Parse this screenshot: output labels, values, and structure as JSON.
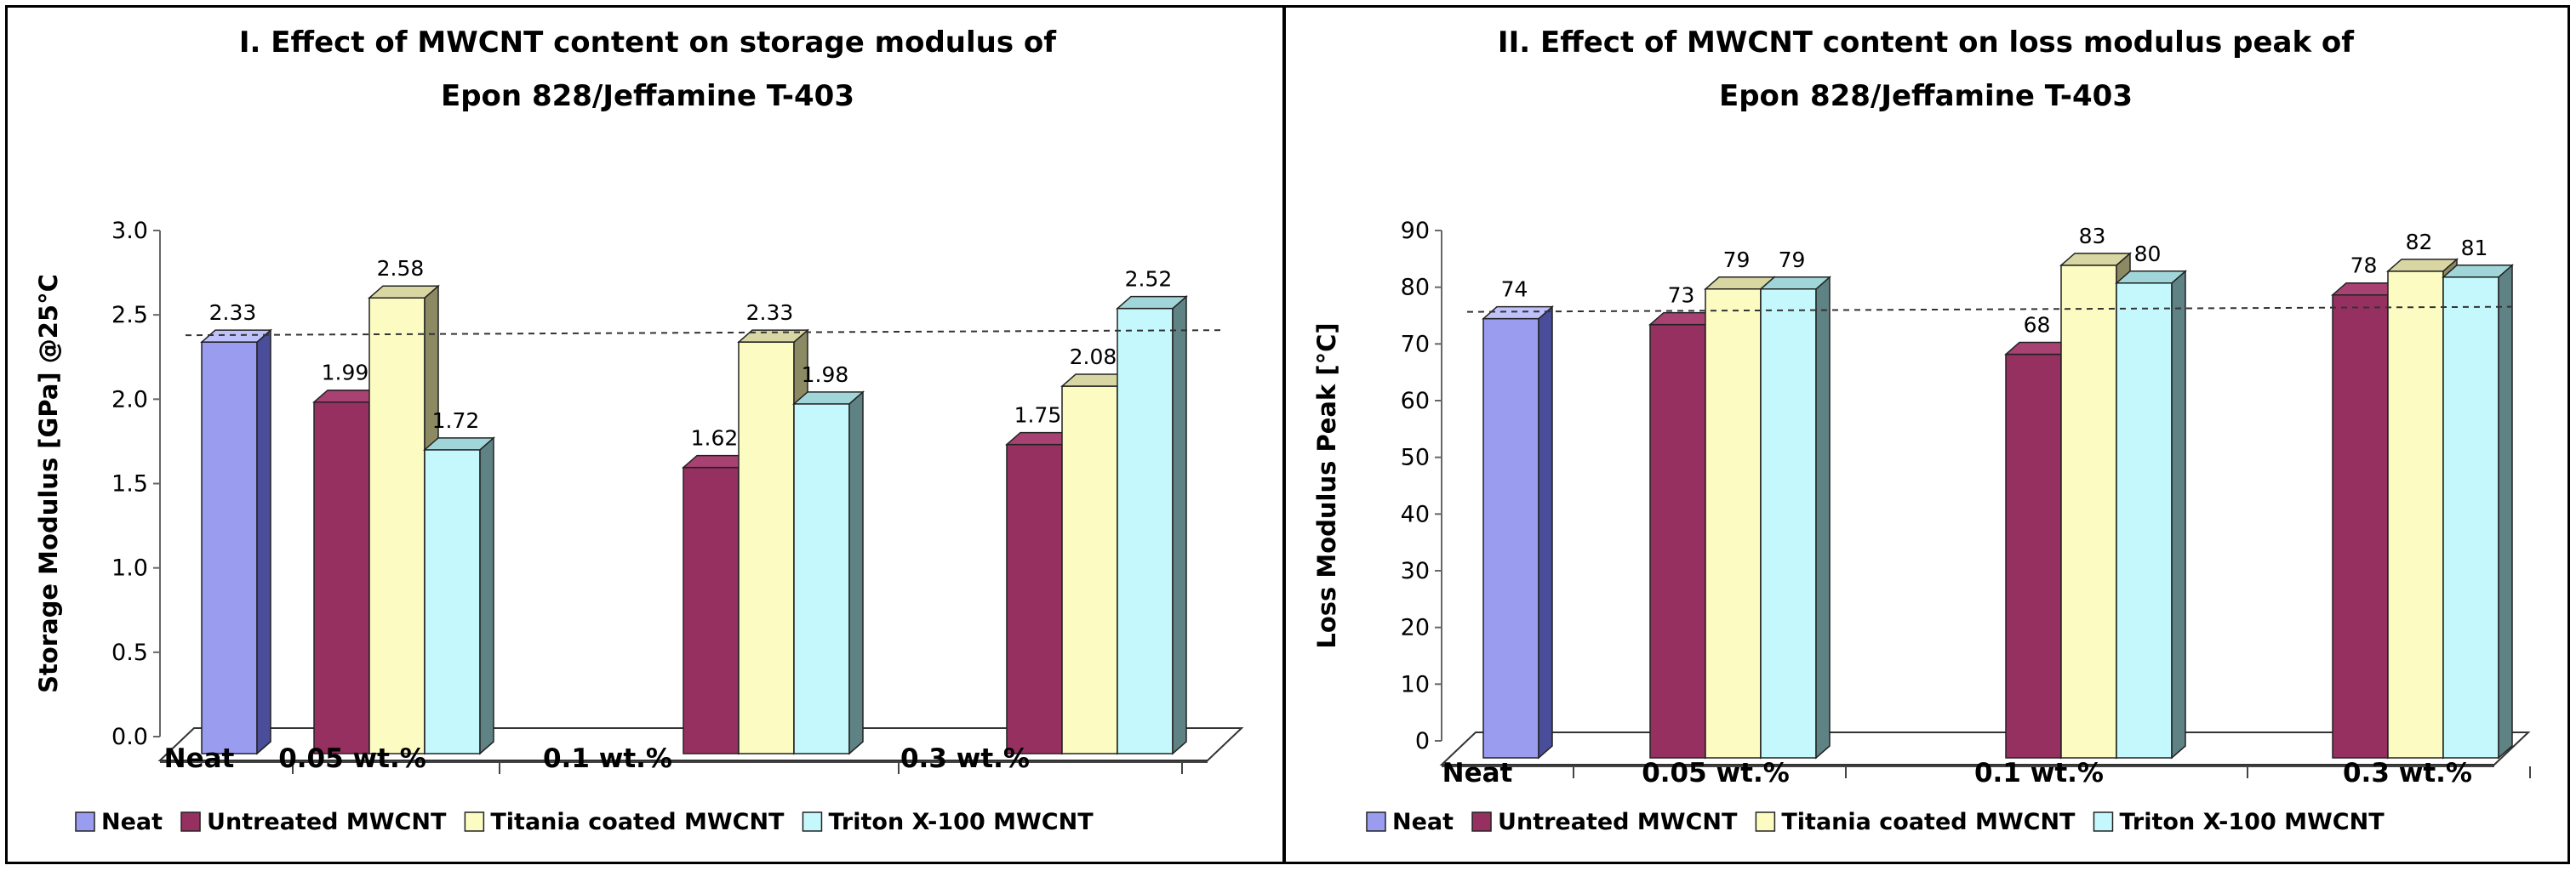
{
  "chart_data": [
    {
      "type": "bar",
      "title_lines": [
        "I. Effect of MWCNT content on storage modulus of",
        "Epon 828/Jeffamine T-403"
      ],
      "ylabel": "Storage Modulus [GPa] @25°C",
      "xlabel": "",
      "ylim": [
        0,
        3.0
      ],
      "yticks": [
        "0.0",
        "0.5",
        "1.0",
        "1.5",
        "2.0",
        "2.5",
        "3.0"
      ],
      "reference_line": 2.33,
      "categories": [
        "Neat",
        "0.05 wt.%",
        "0.1 wt.%",
        "0.3 wt.%"
      ],
      "groups": [
        {
          "category": "Neat",
          "bars": [
            {
              "series": "Neat",
              "value": 2.33,
              "label": "2.33"
            }
          ]
        },
        {
          "category": "0.05 wt.%",
          "bars": [
            {
              "series": "Untreated MWCNT",
              "value": 1.99,
              "label": "1.99"
            },
            {
              "series": "Titania coated MWCNT",
              "value": 2.58,
              "label": "2.58"
            },
            {
              "series": "Triton X-100 MWCNT",
              "value": 1.72,
              "label": "1.72"
            }
          ]
        },
        {
          "category": "0.1 wt.%",
          "bars": [
            {
              "series": "Untreated MWCNT",
              "value": 1.62,
              "label": "1.62"
            },
            {
              "series": "Titania coated MWCNT",
              "value": 2.33,
              "label": "2.33"
            },
            {
              "series": "Triton X-100 MWCNT",
              "value": 1.98,
              "label": "1.98"
            }
          ]
        },
        {
          "category": "0.3 wt.%",
          "bars": [
            {
              "series": "Untreated MWCNT",
              "value": 1.75,
              "label": "1.75"
            },
            {
              "series": "Titania coated MWCNT",
              "value": 2.08,
              "label": "2.08"
            },
            {
              "series": "Triton X-100 MWCNT",
              "value": 2.52,
              "label": "2.52"
            }
          ]
        }
      ]
    },
    {
      "type": "bar",
      "title_lines": [
        "II. Effect of MWCNT content on loss modulus peak of",
        "Epon 828/Jeffamine T-403"
      ],
      "ylabel": "Loss Modulus Peak [°C]",
      "xlabel": "",
      "ylim": [
        0,
        90
      ],
      "yticks": [
        "0",
        "10",
        "20",
        "30",
        "40",
        "50",
        "60",
        "70",
        "80",
        "90"
      ],
      "reference_line": 74,
      "categories": [
        "Neat",
        "0.05 wt.%",
        "0.1 wt.%",
        "0.3 wt.%"
      ],
      "groups": [
        {
          "category": "Neat",
          "bars": [
            {
              "series": "Neat",
              "value": 74,
              "label": "74"
            }
          ]
        },
        {
          "category": "0.05 wt.%",
          "bars": [
            {
              "series": "Untreated MWCNT",
              "value": 73,
              "label": "73"
            },
            {
              "series": "Titania coated MWCNT",
              "value": 79,
              "label": "79"
            },
            {
              "series": "Triton X-100 MWCNT",
              "value": 79,
              "label": "79"
            }
          ]
        },
        {
          "category": "0.1 wt.%",
          "bars": [
            {
              "series": "Untreated MWCNT",
              "value": 68,
              "label": "68"
            },
            {
              "series": "Titania coated MWCNT",
              "value": 83,
              "label": "83"
            },
            {
              "series": "Triton X-100 MWCNT",
              "value": 80,
              "label": "80"
            }
          ]
        },
        {
          "category": "0.3 wt.%",
          "bars": [
            {
              "series": "Untreated MWCNT",
              "value": 78,
              "label": "78"
            },
            {
              "series": "Titania coated MWCNT",
              "value": 82,
              "label": "82"
            },
            {
              "series": "Triton X-100 MWCNT",
              "value": 81,
              "label": "81"
            }
          ]
        }
      ]
    }
  ],
  "series_styles": [
    {
      "name": "Neat",
      "front": "#9a9cf0",
      "side": "#4a4d9a",
      "top": "#bfc1fa"
    },
    {
      "name": "Untreated MWCNT",
      "front": "#953060",
      "side": "#5c1836",
      "top": "#a84272"
    },
    {
      "name": "Titania coated MWCNT",
      "front": "#fbfbc2",
      "side": "#8b8a62",
      "top": "#d8d6a2"
    },
    {
      "name": "Triton X-100 MWCNT",
      "front": "#c4f8fc",
      "side": "#5f8285",
      "top": "#a0d6da"
    }
  ],
  "legend": [
    "Neat",
    "Untreated MWCNT",
    "Titania coated MWCNT",
    "Triton X-100 MWCNT"
  ]
}
